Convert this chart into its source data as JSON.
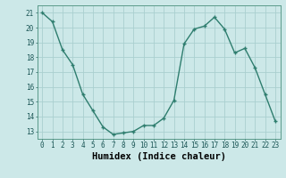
{
  "x": [
    0,
    1,
    2,
    3,
    4,
    5,
    6,
    7,
    8,
    9,
    10,
    11,
    12,
    13,
    14,
    15,
    16,
    17,
    18,
    19,
    20,
    21,
    22,
    23
  ],
  "y": [
    21.0,
    20.4,
    18.5,
    17.5,
    15.5,
    14.4,
    13.3,
    12.8,
    12.9,
    13.0,
    13.4,
    13.4,
    13.9,
    15.1,
    18.9,
    19.9,
    20.1,
    20.7,
    19.9,
    18.3,
    18.6,
    17.3,
    15.5,
    13.7
  ],
  "line_color": "#2e7d6e",
  "marker": "+",
  "bg_color": "#cce8e8",
  "grid_color": "#aacfcf",
  "xlabel": "Humidex (Indice chaleur)",
  "ylim": [
    12.5,
    21.5
  ],
  "xlim": [
    -0.5,
    23.5
  ],
  "yticks": [
    13,
    14,
    15,
    16,
    17,
    18,
    19,
    20,
    21
  ],
  "xticks": [
    0,
    1,
    2,
    3,
    4,
    5,
    6,
    7,
    8,
    9,
    10,
    11,
    12,
    13,
    14,
    15,
    16,
    17,
    18,
    19,
    20,
    21,
    22,
    23
  ],
  "tick_fontsize": 5.5,
  "xlabel_fontsize": 7.5,
  "line_width": 1.0,
  "marker_size": 3.5,
  "marker_edge_width": 1.0
}
